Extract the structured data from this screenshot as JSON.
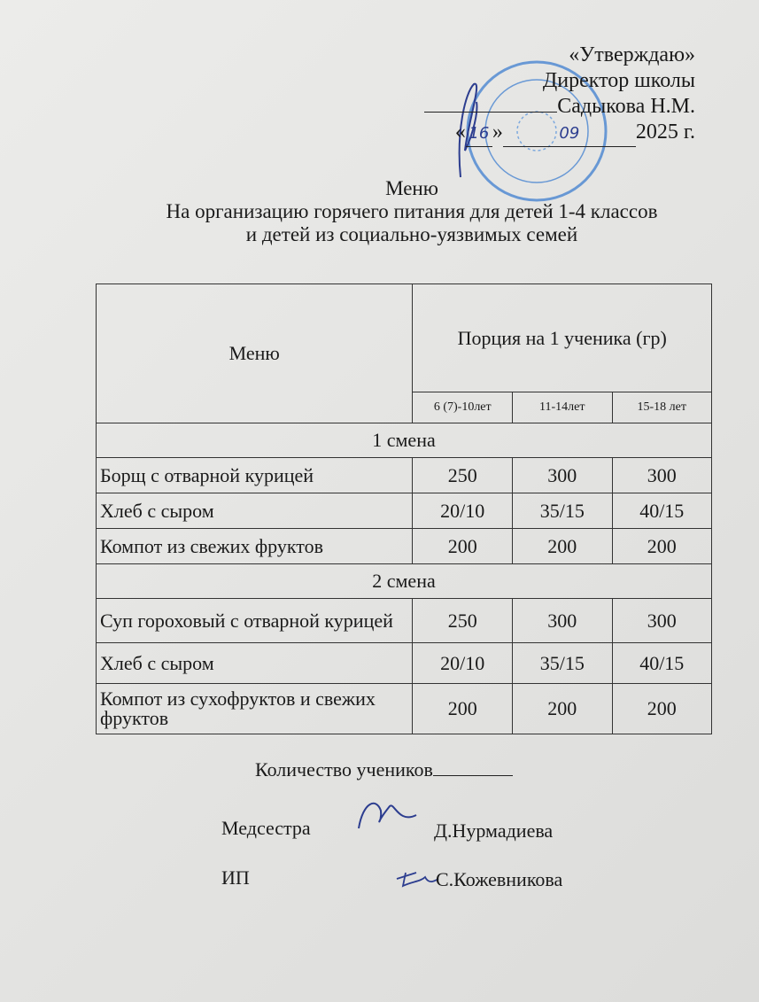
{
  "approval": {
    "heading": "«Утверждаю»",
    "position": "Директор школы",
    "name": "Садыкова Н.М.",
    "date_day": "16",
    "date_month": "09",
    "date_year": "2025 г.",
    "quote_open": "«",
    "quote_close": "»"
  },
  "title": {
    "line1": "Меню",
    "line2": "На организацию горячего питания для детей 1-4 классов",
    "line3": "и детей из социально-уязвимых семей"
  },
  "table": {
    "header_menu": "Меню",
    "header_portion": "Порция на 1 ученика (гр)",
    "age_groups": [
      "6 (7)-10лет",
      "11-14лет",
      "15-18 лет"
    ],
    "shifts": [
      {
        "label": "1 смена",
        "rows": [
          {
            "dish": "Борщ с отварной курицей",
            "values": [
              "250",
              "300",
              "300"
            ]
          },
          {
            "dish": "Хлеб с сыром",
            "values": [
              "20/10",
              "35/15",
              "40/15"
            ]
          },
          {
            "dish": "Компот из свежих фруктов",
            "values": [
              "200",
              "200",
              "200"
            ]
          }
        ]
      },
      {
        "label": "2 смена",
        "rows": [
          {
            "dish": "Суп гороховый с отварной курицей",
            "values": [
              "250",
              "300",
              "300"
            ]
          },
          {
            "dish": "Хлеб с сыром",
            "values": [
              "20/10",
              "35/15",
              "40/15"
            ]
          },
          {
            "dish": "Компот из сухофруктов и свежих фруктов",
            "values": [
              "200",
              "200",
              "200"
            ]
          }
        ]
      }
    ]
  },
  "footer": {
    "students_label": "Количество учеников",
    "nurse_role": "Медсестра",
    "nurse_name": "Д.Нурмадиева",
    "ip_role": "ИП",
    "ip_name": "С.Кожевникова"
  },
  "colors": {
    "stamp": "#3f7fd0",
    "ink": "#2c3d8f",
    "paper": "#e6e6e4"
  }
}
